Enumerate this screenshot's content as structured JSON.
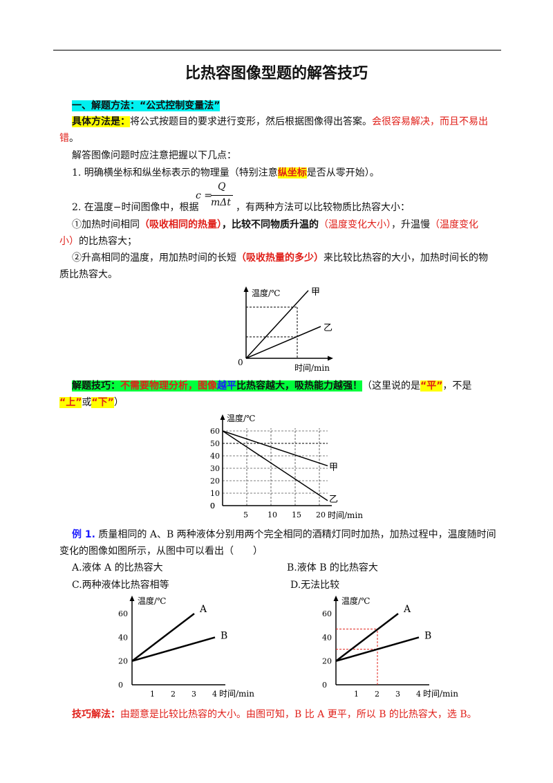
{
  "title": "比热容图像型题的解答技巧",
  "section1_heading": "一、解题方法：“公式控制变量法”",
  "method": {
    "label": "具体方法是：",
    "text": "将公式按题目的要求进行变形，然后根据图像得出答案。",
    "red_text_1": "会很容易解决，而且不易出",
    "red_text_2": "错",
    "end": "。"
  },
  "note_intro": "解答图像问题时应注意把握以下几点：",
  "point1": {
    "pre": "1. 明确横坐标和纵坐标表示的物理量（特别注意",
    "highlight": "纵坐标",
    "post": "是否从零开始）。"
  },
  "point2": {
    "pre": "2. 在温度−时间图像中，根据",
    "post": "，有两种方法可以比较物质比热容大小："
  },
  "formula": {
    "lhs": "c =",
    "num": "Q",
    "den": "mΔt"
  },
  "way1": {
    "a": "①加热时间相同",
    "b": "（吸收相同的热量）",
    "c": "，比较不同物质升温的",
    "d": "（温度变化大小）",
    "e": "，升温慢",
    "f": "（温度变化",
    "g": "小）",
    "h": "的比热容大；"
  },
  "way2": {
    "a": "②升高相同的温度，用加热时间的长短",
    "b": "（吸收热量的多少）",
    "c": "来比较比热容的大小，加热时间长的物",
    "d": "质比热容大。"
  },
  "tip": {
    "a": "解题技巧：",
    "b": "不需要物理分析，图像",
    "c": "越平",
    "d": "比热容越大，吸热能力越强！",
    "e": "（这里说的是",
    "f": "“平”",
    "g": "，不是",
    "h": "“上”",
    "i": "或",
    "j": "“下”",
    "k": "）"
  },
  "example": {
    "label": "例 1.",
    "text1": " 质量相同的 A、B 两种液体分别用两个完全相同的酒精灯同时加热，加热过程中，温度随时间",
    "text2": "变化的图像如图所示，从图中可以看出（　　）",
    "opt_a": "A.液体 A 的比热容大",
    "opt_b": "B.液体 B 的比热容大",
    "opt_c": "C.两种液体比热容相等",
    "opt_d": "D.无法比较"
  },
  "solution": {
    "label": "技巧解法：",
    "text": "由题意是比较比热容的大小。由图可知，B 比 A 更平，所以 B 的比热容大，选 B。"
  },
  "chart_data": [
    {
      "type": "line",
      "ylabel": "温度/℃",
      "xlabel": "时间/min",
      "origin_label": "0",
      "series": [
        {
          "name": "甲"
        },
        {
          "name": "乙"
        }
      ],
      "x_ticks": [],
      "y_ticks": [],
      "note": "schematic"
    },
    {
      "type": "line",
      "ylabel": "温度/℃",
      "xlabel": "时间/min",
      "x": [
        0,
        20
      ],
      "x_ticks": [
        0,
        5,
        10,
        15,
        20
      ],
      "y_ticks": [
        0,
        10,
        20,
        30,
        40,
        50,
        60
      ],
      "ylim": [
        0,
        60
      ],
      "xlim": [
        0,
        20
      ],
      "series": [
        {
          "name": "甲",
          "values": [
            60,
            32
          ]
        },
        {
          "name": "乙",
          "values": [
            60,
            4
          ]
        }
      ],
      "grid": true
    },
    {
      "type": "line",
      "ylabel": "温度/℃",
      "xlabel": "时间/min",
      "x_ticks": [
        1,
        2,
        3,
        4
      ],
      "y_ticks": [
        0,
        20,
        40,
        60
      ],
      "ylim": [
        0,
        70
      ],
      "xlim": [
        0,
        4.5
      ],
      "series": [
        {
          "name": "A",
          "x": [
            0,
            3
          ],
          "values": [
            20,
            60
          ]
        },
        {
          "name": "B",
          "x": [
            0,
            4
          ],
          "values": [
            20,
            40
          ]
        }
      ],
      "grid": false
    },
    {
      "type": "line",
      "ylabel": "温度/℃",
      "xlabel": "时间/min",
      "x_ticks": [
        1,
        2,
        3,
        4
      ],
      "y_ticks": [
        0,
        20,
        40,
        60
      ],
      "ylim": [
        0,
        70
      ],
      "xlim": [
        0,
        4.5
      ],
      "series": [
        {
          "name": "A",
          "x": [
            0,
            3
          ],
          "values": [
            20,
            60
          ]
        },
        {
          "name": "B",
          "x": [
            0,
            4
          ],
          "values": [
            20,
            40
          ]
        }
      ],
      "reference_lines": {
        "x": 2,
        "y": [
          47,
          30
        ]
      },
      "grid": false
    }
  ]
}
